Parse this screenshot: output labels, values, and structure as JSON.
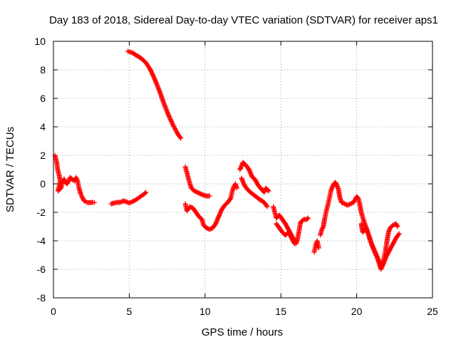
{
  "chart_data": {
    "type": "scatter",
    "title": "Day 183 of 2018, Sidereal Day-to-day VTEC variation (SDTVAR) for receiver aps1",
    "xlabel": "GPS time / hours",
    "ylabel": "SDTVAR / TECUs",
    "xlim": [
      0,
      25
    ],
    "ylim": [
      -8,
      10
    ],
    "xticks": [
      0,
      5,
      10,
      15,
      20,
      25
    ],
    "yticks": [
      -8,
      -6,
      -4,
      -2,
      0,
      2,
      4,
      6,
      8,
      10
    ],
    "xtick_labels": [
      "0",
      "5",
      "10",
      "15",
      "20",
      "25"
    ],
    "ytick_labels": [
      "-8",
      "-6",
      "-4",
      "-2",
      "0",
      "2",
      "4",
      "6",
      "8",
      "10"
    ],
    "grid": true,
    "marker": "+",
    "color": "#ff0000",
    "series": [
      {
        "name": "seg1",
        "points": [
          [
            0.1,
            2.0
          ],
          [
            0.2,
            1.6
          ],
          [
            0.3,
            0.9
          ],
          [
            0.4,
            0.5
          ],
          [
            0.45,
            0.2
          ],
          [
            0.3,
            -0.5
          ],
          [
            0.5,
            -0.3
          ],
          [
            0.6,
            0.1
          ],
          [
            0.7,
            0.35
          ],
          [
            0.8,
            0.1
          ],
          [
            0.9,
            0.0
          ],
          [
            1.0,
            0.2
          ],
          [
            1.1,
            0.45
          ],
          [
            1.25,
            0.3
          ],
          [
            1.4,
            0.2
          ],
          [
            1.5,
            0.45
          ],
          [
            1.6,
            0.15
          ],
          [
            1.7,
            -0.35
          ],
          [
            1.8,
            -0.7
          ],
          [
            1.9,
            -0.95
          ],
          [
            2.0,
            -1.15
          ],
          [
            2.1,
            -1.25
          ],
          [
            2.2,
            -1.3
          ],
          [
            2.4,
            -1.32
          ],
          [
            2.6,
            -1.3
          ],
          [
            2.7,
            -1.32
          ]
        ]
      },
      {
        "name": "seg2",
        "points": [
          [
            3.8,
            -1.4
          ],
          [
            4.0,
            -1.35
          ],
          [
            4.2,
            -1.3
          ],
          [
            4.4,
            -1.3
          ],
          [
            4.6,
            -1.2
          ],
          [
            4.8,
            -1.25
          ],
          [
            5.0,
            -1.35
          ],
          [
            5.2,
            -1.25
          ],
          [
            5.4,
            -1.15
          ],
          [
            5.6,
            -1.0
          ],
          [
            5.8,
            -0.85
          ],
          [
            6.0,
            -0.7
          ],
          [
            6.1,
            -0.6
          ]
        ]
      },
      {
        "name": "seg3",
        "points": [
          [
            4.9,
            9.3
          ],
          [
            5.2,
            9.2
          ],
          [
            5.5,
            9.0
          ],
          [
            5.8,
            8.8
          ],
          [
            6.1,
            8.5
          ],
          [
            6.4,
            8.0
          ],
          [
            6.7,
            7.3
          ],
          [
            7.0,
            6.5
          ],
          [
            7.3,
            5.6
          ],
          [
            7.6,
            4.8
          ],
          [
            7.9,
            4.1
          ],
          [
            8.2,
            3.5
          ],
          [
            8.4,
            3.2
          ]
        ]
      },
      {
        "name": "seg4",
        "points": [
          [
            8.7,
            1.2
          ],
          [
            8.8,
            0.8
          ],
          [
            8.9,
            0.4
          ],
          [
            9.0,
            0.0
          ],
          [
            9.1,
            -0.3
          ],
          [
            9.3,
            -0.5
          ],
          [
            9.5,
            -0.6
          ],
          [
            9.7,
            -0.7
          ],
          [
            9.9,
            -0.8
          ],
          [
            10.1,
            -0.85
          ],
          [
            10.3,
            -0.85
          ]
        ]
      },
      {
        "name": "seg5",
        "points": [
          [
            8.7,
            -1.4
          ],
          [
            8.8,
            -1.9
          ],
          [
            9.0,
            -1.6
          ],
          [
            9.2,
            -1.7
          ],
          [
            9.4,
            -2.0
          ],
          [
            9.6,
            -2.3
          ],
          [
            9.8,
            -2.5
          ],
          [
            9.9,
            -2.9
          ],
          [
            10.1,
            -3.1
          ],
          [
            10.3,
            -3.2
          ],
          [
            10.5,
            -3.1
          ],
          [
            10.7,
            -2.8
          ],
          [
            10.9,
            -2.3
          ],
          [
            11.1,
            -1.8
          ],
          [
            11.3,
            -1.5
          ],
          [
            11.5,
            -1.3
          ],
          [
            11.7,
            -1.0
          ],
          [
            11.8,
            -0.5
          ],
          [
            11.9,
            -0.2
          ],
          [
            12.0,
            0.0
          ],
          [
            12.1,
            -0.3
          ]
        ]
      },
      {
        "name": "seg6",
        "points": [
          [
            12.3,
            1.0
          ],
          [
            12.5,
            1.5
          ],
          [
            12.7,
            1.3
          ],
          [
            12.9,
            1.0
          ],
          [
            13.1,
            0.5
          ],
          [
            13.3,
            0.3
          ],
          [
            13.5,
            -0.1
          ],
          [
            13.7,
            -0.35
          ],
          [
            13.9,
            -0.6
          ],
          [
            14.0,
            -0.3
          ],
          [
            14.2,
            -0.5
          ]
        ]
      },
      {
        "name": "seg7",
        "points": [
          [
            12.4,
            0.4
          ],
          [
            12.6,
            -0.1
          ],
          [
            12.8,
            -0.4
          ],
          [
            13.0,
            -0.6
          ],
          [
            13.3,
            -0.85
          ],
          [
            13.6,
            -1.1
          ],
          [
            13.9,
            -1.3
          ],
          [
            14.1,
            -1.6
          ]
        ]
      },
      {
        "name": "seg8",
        "points": [
          [
            14.5,
            -1.6
          ],
          [
            14.6,
            -2.0
          ],
          [
            14.7,
            -2.4
          ],
          [
            14.9,
            -2.2
          ],
          [
            15.1,
            -2.5
          ],
          [
            15.3,
            -2.8
          ],
          [
            15.5,
            -3.2
          ],
          [
            15.7,
            -3.6
          ],
          [
            15.9,
            -4.0
          ],
          [
            16.0,
            -4.2
          ],
          [
            16.1,
            -3.9
          ],
          [
            16.3,
            -2.7
          ],
          [
            16.5,
            -2.5
          ],
          [
            16.7,
            -2.5
          ],
          [
            16.8,
            -2.4
          ]
        ]
      },
      {
        "name": "seg9",
        "points": [
          [
            14.7,
            -2.8
          ],
          [
            14.9,
            -3.1
          ],
          [
            15.1,
            -3.4
          ],
          [
            15.3,
            -3.6
          ],
          [
            15.5,
            -3.4
          ],
          [
            15.7,
            -3.8
          ],
          [
            15.9,
            -4.2
          ]
        ]
      },
      {
        "name": "seg10",
        "points": [
          [
            17.2,
            -4.8
          ],
          [
            17.3,
            -4.3
          ],
          [
            17.4,
            -4.0
          ],
          [
            17.5,
            -4.5
          ]
        ]
      },
      {
        "name": "seg11",
        "points": [
          [
            17.6,
            -3.6
          ],
          [
            17.7,
            -3.2
          ],
          [
            17.8,
            -3.0
          ],
          [
            17.9,
            -2.4
          ],
          [
            18.0,
            -1.9
          ],
          [
            18.1,
            -1.5
          ],
          [
            18.2,
            -1.0
          ],
          [
            18.3,
            -0.5
          ],
          [
            18.4,
            -0.2
          ],
          [
            18.5,
            0.0
          ],
          [
            18.6,
            0.1
          ],
          [
            18.7,
            -0.1
          ],
          [
            18.8,
            -0.4
          ],
          [
            18.9,
            -1.0
          ],
          [
            19.0,
            -1.3
          ],
          [
            19.2,
            -1.4
          ],
          [
            19.4,
            -1.5
          ],
          [
            19.6,
            -1.4
          ],
          [
            19.8,
            -1.3
          ],
          [
            19.9,
            -1.1
          ],
          [
            20.0,
            -0.9
          ],
          [
            20.1,
            -1.0
          ],
          [
            20.2,
            -1.4
          ],
          [
            20.3,
            -2.0
          ],
          [
            20.5,
            -2.7
          ],
          [
            20.7,
            -3.3
          ],
          [
            20.9,
            -4.0
          ],
          [
            21.1,
            -4.5
          ],
          [
            21.3,
            -5.0
          ],
          [
            21.5,
            -5.5
          ],
          [
            21.6,
            -5.8
          ],
          [
            21.7,
            -5.7
          ],
          [
            21.8,
            -5.2
          ],
          [
            21.9,
            -4.7
          ],
          [
            22.0,
            -4.0
          ],
          [
            22.1,
            -3.4
          ],
          [
            22.2,
            -3.1
          ],
          [
            22.4,
            -2.9
          ],
          [
            22.6,
            -2.8
          ],
          [
            22.7,
            -3.0
          ]
        ]
      },
      {
        "name": "seg12",
        "points": [
          [
            20.3,
            -2.8
          ],
          [
            20.4,
            -3.4
          ],
          [
            20.6,
            -3.1
          ],
          [
            20.8,
            -3.6
          ],
          [
            21.0,
            -4.3
          ],
          [
            21.2,
            -4.8
          ],
          [
            21.4,
            -5.3
          ],
          [
            21.6,
            -6.0
          ],
          [
            21.8,
            -5.5
          ],
          [
            22.0,
            -5.0
          ],
          [
            22.2,
            -4.6
          ],
          [
            22.4,
            -4.2
          ],
          [
            22.6,
            -3.8
          ],
          [
            22.8,
            -3.5
          ]
        ]
      }
    ]
  }
}
